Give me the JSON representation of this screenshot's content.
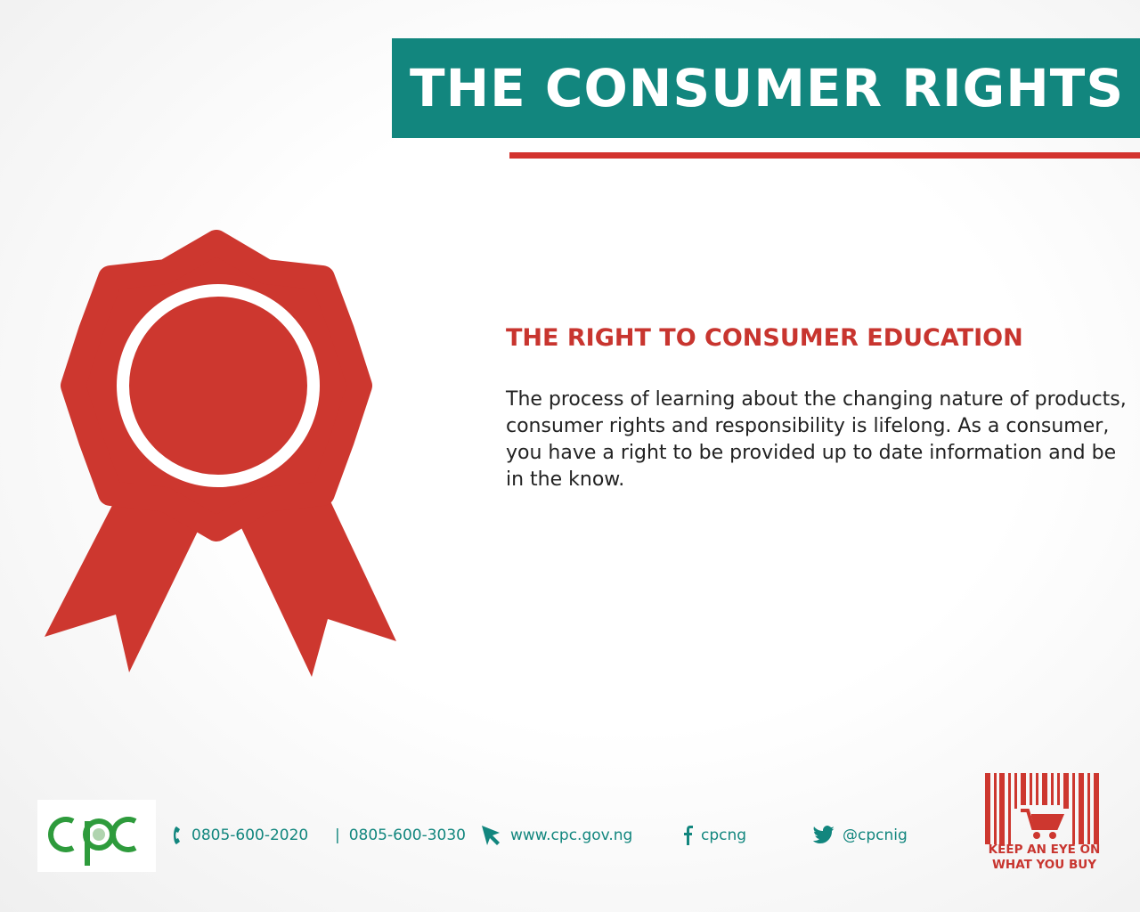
{
  "header": {
    "title": "THE CONSUMER RIGHTS"
  },
  "main": {
    "heading": "THE RIGHT TO CONSUMER EDUCATION",
    "body": "The process of learning about the changing nature of products, consumer rights and responsibility is lifelong. As a consumer, you have a right to be provided up to date information and be in the know."
  },
  "footer": {
    "logo_text": "CPC",
    "phone1": "0805-600-2020",
    "separator": "|",
    "phone2": "0805-600-3030",
    "website": "www.cpc.gov.ng",
    "facebook": "cpcng",
    "twitter": "@cpcnig",
    "tagline_line1": "KEEP AN EYE ON",
    "tagline_line2": "WHAT YOU BUY"
  },
  "colors": {
    "teal": "#12867e",
    "red": "#c8352f",
    "logo_green": "#2e9b3c"
  },
  "icons": [
    "award-ribbon-icon",
    "phone-icon",
    "cursor-icon",
    "facebook-icon",
    "twitter-icon",
    "shopping-cart-icon",
    "barcode-icon"
  ]
}
